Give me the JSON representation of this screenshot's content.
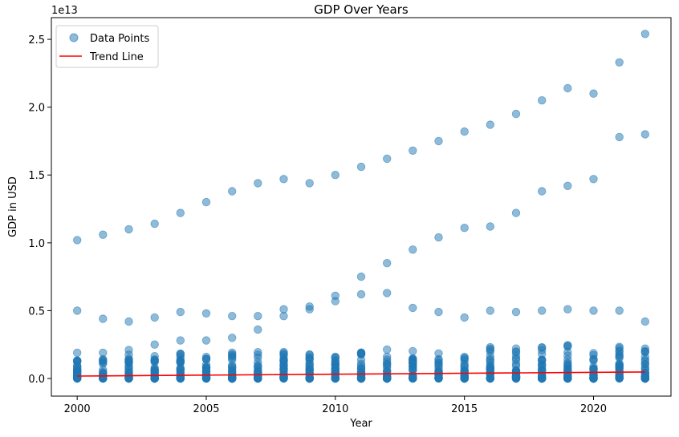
{
  "chart_data": {
    "type": "scatter",
    "title": "GDP Over Years",
    "xlabel": "Year",
    "ylabel": "GDP in USD",
    "offset_label": "1e13",
    "xlim": [
      1999.0,
      2023.0
    ],
    "ylim": [
      -0.13,
      2.66
    ],
    "xticks": [
      2000,
      2005,
      2010,
      2015,
      2020
    ],
    "xtick_labels": [
      "2000",
      "2005",
      "2010",
      "2015",
      "2020"
    ],
    "yticks": [
      0.0,
      0.5,
      1.0,
      1.5,
      2.0,
      2.5
    ],
    "ytick_labels": [
      "0.0",
      "0.5",
      "1.0",
      "1.5",
      "2.0",
      "2.5"
    ],
    "grid": false,
    "legend_position": "top-left",
    "series": [
      {
        "name": "Data Points",
        "kind": "scatter",
        "color": "#1f77b4",
        "x": [
          2000,
          2001,
          2002,
          2003,
          2004,
          2005,
          2006,
          2007,
          2008,
          2009,
          2010,
          2011,
          2012,
          2013,
          2014,
          2015,
          2016,
          2017,
          2018,
          2019,
          2020,
          2021,
          2022,
          2000,
          2001,
          2002,
          2003,
          2004,
          2005,
          2006,
          2007,
          2008,
          2009,
          2010,
          2011,
          2012,
          2013,
          2014,
          2015,
          2016,
          2017,
          2018,
          2019,
          2020,
          2021,
          2022,
          2000,
          2001,
          2002,
          2003,
          2004,
          2005,
          2006,
          2007,
          2008,
          2009,
          2010,
          2011,
          2012,
          2013,
          2014,
          2015,
          2016,
          2017,
          2018,
          2019,
          2020,
          2021,
          2022
        ],
        "y": [
          1.02,
          1.06,
          1.1,
          1.14,
          1.22,
          1.3,
          1.38,
          1.44,
          1.47,
          1.44,
          1.5,
          1.56,
          1.62,
          1.68,
          1.75,
          1.82,
          1.87,
          1.95,
          2.05,
          2.14,
          2.1,
          2.33,
          2.54,
          0.5,
          0.44,
          0.42,
          0.45,
          0.49,
          0.48,
          0.46,
          0.46,
          0.51,
          0.53,
          0.61,
          0.75,
          0.85,
          0.95,
          1.04,
          1.11,
          1.12,
          1.22,
          1.38,
          1.42,
          1.47,
          1.78,
          1.8,
          0.19,
          0.19,
          0.21,
          0.25,
          0.28,
          0.28,
          0.3,
          0.36,
          0.46,
          0.51,
          0.57,
          0.62,
          0.63,
          0.52,
          0.49,
          0.45,
          0.5,
          0.49,
          0.5,
          0.51,
          0.5,
          0.5,
          0.42
        ],
        "cluster_note": ""
      },
      {
        "name": "Trend Line",
        "kind": "line",
        "color": "#ff0000",
        "x": [
          2000,
          2022
        ],
        "y": [
          0.018,
          0.048
        ]
      }
    ]
  }
}
